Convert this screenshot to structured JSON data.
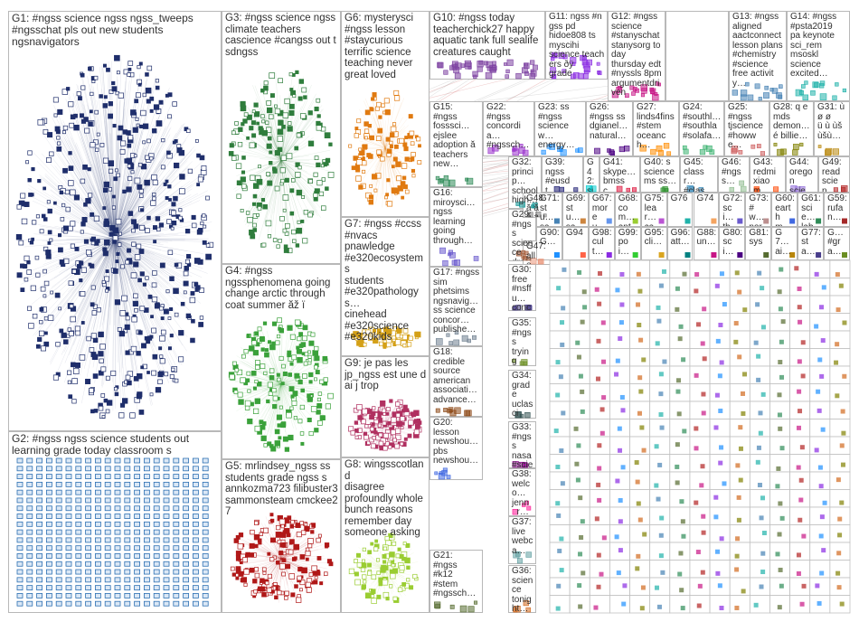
{
  "groups": [
    {
      "id": "G1",
      "label": "G1: #ngss science ngss ngss_tweeps\n#ngsschat pls out new students\nngsnavigators",
      "color": "#1f2e6b",
      "nodes": 560,
      "cluster": "ellipse"
    },
    {
      "id": "G2",
      "label": "G2: #ngss ngss science students out\nlearning grade today classroom s",
      "color": "#2c6fb2",
      "nodes": 380,
      "cluster": "grid"
    },
    {
      "id": "G3",
      "label": "G3: #ngss science ngss\nclimate teachers\ncascience #cangss out t\nsdngss",
      "color": "#2f7d3c",
      "nodes": 190,
      "cluster": "ellipse"
    },
    {
      "id": "G4",
      "label": "G4: #ngss\nngssphenomena going\nchange arctic through\ncoat summer ăž ï",
      "color": "#3aa13a",
      "nodes": 180,
      "cluster": "ellipse"
    },
    {
      "id": "G5",
      "label": "G5: mrlindsey_ngss ss\nstudents grade ngss s\nannkozma723 filibuster3\nsammonsteam cmckee27",
      "color": "#b01818",
      "nodes": 170,
      "cluster": "ellipse"
    },
    {
      "id": "G6",
      "label": "G6: mysterysci\n#ngss lesson\n#staycurious\nterrific science\nteaching never\ngreat loved",
      "color": "#e07a10",
      "nodes": 110,
      "cluster": "ellipse"
    },
    {
      "id": "G7",
      "label": "G7: #ngss #ccss\n#nvacs\npnawledge\n#e320ecosystems\nstudents\n#e320pathologys…\ncinehead\n#e320science\n#e320kids",
      "color": "#d4a017",
      "nodes": 60,
      "cluster": "ellipse"
    },
    {
      "id": "G8",
      "label": "G8: wingsscotland\ndisagree\nprofoundly whole\nbunch reasons\nremember day\nsomeone asking",
      "color": "#9acd32",
      "nodes": 90,
      "cluster": "ellipse"
    },
    {
      "id": "G9",
      "label": "G9: je pas les\njp_ngss est une d\nai j trop",
      "color": "#b03060",
      "nodes": 130,
      "cluster": "ellipse"
    },
    {
      "id": "G10",
      "label": "G10: #ngss today\nteacherchick27 happy\naquatic tank full sealife\ncreatures caught",
      "color": "#7b3fa0",
      "nodes": 40,
      "cluster": "row"
    },
    {
      "id": "G11",
      "label": "G11: ngss #ngss pd\nhidoe808 ts myscihi\nscience teachers ðÿ\ngrade",
      "color": "#8a2be2",
      "nodes": 25,
      "cluster": "row"
    },
    {
      "id": "G12",
      "label": "G12: #ngss\nscience\n#stanyschat\nstanysorg today\nthursday edt\n#nyssls 8pm\nargumentdriven",
      "color": "#c71585",
      "nodes": 18,
      "cluster": "row"
    },
    {
      "id": "G13",
      "label": "G13: #ngss\naligned\naactconnect\nlesson plans\n#chemistry\n#science\nfree activity…",
      "color": "#4682b4",
      "nodes": 14,
      "cluster": "row"
    },
    {
      "id": "G14",
      "label": "G14: #ngss\n#psta2019\npa keynote\nsci_rem\nmsoskl\nscience\nexcited…",
      "color": "#20b2aa",
      "nodes": 14,
      "cluster": "row"
    },
    {
      "id": "G15",
      "label": "G15:\n#ngss\nfosssci…\nejslee\nadoption ă\nteachers\nnew…",
      "color": "#2e8b57",
      "nodes": 8,
      "cluster": "small"
    },
    {
      "id": "G16",
      "label": "G16:\nmiroysci…\nngss\nlearning\ngoing\nthrough…",
      "color": "#6a5acd",
      "nodes": 8,
      "cluster": "small"
    },
    {
      "id": "G17",
      "label": "G17: #ngss sim\nphetsims\nngsnavig…\nss science\nconcor…\npublishe…",
      "color": "#708090",
      "nodes": 8,
      "cluster": "small"
    },
    {
      "id": "G18",
      "label": "G18:\ncredible\nsource\namerican\nassociati…\nadvance…",
      "color": "#8b4513",
      "nodes": 8,
      "cluster": "small"
    },
    {
      "id": "G19",
      "label": "",
      "color": "#ffffff",
      "nodes": 0,
      "cluster": "none"
    },
    {
      "id": "G20",
      "label": "G20:\nlesson\nnewshou…\npbs\nnewshou…",
      "color": "#4169e1",
      "nodes": 6,
      "cluster": "small"
    },
    {
      "id": "G21",
      "label": "G21:\n#ngss\n#k12\n#stem\n#ngssch…",
      "color": "#556b2f",
      "nodes": 6,
      "cluster": "small"
    },
    {
      "id": "G22",
      "label": "G22:\n#ngss\nconcordia…\n#ngssch…",
      "color": "#9932cc",
      "nodes": 8,
      "cluster": "small"
    },
    {
      "id": "G23",
      "label": "G23: ss\n#ngss\nsciencew…\nenergy…",
      "color": "#1e90ff",
      "nodes": 8,
      "cluster": "small"
    },
    {
      "id": "G24",
      "label": "G24:\n#southl…\n#southla\n#solafa…",
      "color": "#3cb371",
      "nodes": 6,
      "cluster": "small"
    },
    {
      "id": "G25",
      "label": "G25:\n#ngss\ntjscience\n#howwe…",
      "color": "#cd5c5c",
      "nodes": 6,
      "cluster": "small"
    },
    {
      "id": "G26",
      "label": "G26:\n#ngss ss\ndgianel…\nnatural…",
      "color": "#4b0082",
      "nodes": 6,
      "cluster": "small"
    },
    {
      "id": "G27",
      "label": "G27:\nlinds4fins\n#stem\noceanch…",
      "color": "#ff8c00",
      "nodes": 6,
      "cluster": "small"
    },
    {
      "id": "G28",
      "label": "G28: q e\nmds\ndemon…\né billie…",
      "color": "#808000",
      "nodes": 6,
      "cluster": "small"
    },
    {
      "id": "G29",
      "label": "G29:\n#ngss\nscience\ndrerea…",
      "color": "#a0522d",
      "nodes": 6,
      "cluster": "small"
    },
    {
      "id": "G30",
      "label": "G30:\nfree\n#nsffu…\nconcor…",
      "color": "#483d8b",
      "nodes": 6,
      "cluster": "small"
    },
    {
      "id": "G31",
      "label": "G31: ù\nø ø\nü ù ùš\nùšù…",
      "color": "#b8860b",
      "nodes": 4,
      "cluster": "small"
    },
    {
      "id": "G32",
      "label": "G32:\nprincip…\nschool\nhigh…",
      "color": "#008b8b",
      "nodes": 4,
      "cluster": "small"
    },
    {
      "id": "G33",
      "label": "G33:\n#ngss\nnasa\n#scied…",
      "color": "#8b008b",
      "nodes": 4,
      "cluster": "small"
    },
    {
      "id": "G34",
      "label": "G34:\ngrade\nuclasci\nsmmu…",
      "color": "#2f4f4f",
      "nodes": 4,
      "cluster": "small"
    },
    {
      "id": "G35",
      "label": "G35:\n#ngss\ntrying\nout…",
      "color": "#6b8e23",
      "nodes": 4,
      "cluster": "small"
    },
    {
      "id": "G36",
      "label": "G36:\nscience\ntonight…",
      "color": "#d2691e",
      "nodes": 4,
      "cluster": "small"
    },
    {
      "id": "G37",
      "label": "G37:\nlive\nwebca…",
      "color": "#5f9ea0",
      "nodes": 4,
      "cluster": "small"
    },
    {
      "id": "G38",
      "label": "G38:\nwelco…\njenn_r…",
      "color": "#ff1493",
      "nodes": 4,
      "cluster": "small"
    },
    {
      "id": "G39",
      "label": "G39:\nngss\n#eusdt…",
      "color": "#191970",
      "nodes": 3,
      "cluster": "small"
    },
    {
      "id": "G40",
      "label": "G40: s\nscience\nms ss…",
      "color": "#228b22",
      "nodes": 3,
      "cluster": "small"
    },
    {
      "id": "G41",
      "label": "G41:\nskype…\nbmssc…",
      "color": "#dc143c",
      "nodes": 3,
      "cluster": "small"
    },
    {
      "id": "G42",
      "label": "G42:\nsjofficial\ndanielle…",
      "color": "#00ced1",
      "nodes": 3,
      "cluster": "small"
    },
    {
      "id": "G43",
      "label": "G43:\nredmi\nxiaom…",
      "color": "#ff4500",
      "nodes": 3,
      "cluster": "small"
    },
    {
      "id": "G44",
      "label": "G44:\noregon\nscien…",
      "color": "#9370db",
      "nodes": 3,
      "cluster": "small"
    },
    {
      "id": "G45",
      "label": "G45:\nclassr…\n#clas…",
      "color": "#3c8dbc",
      "nodes": 3,
      "cluster": "small"
    },
    {
      "id": "G46",
      "label": "G46:\n#ngss…",
      "color": "#8fbc8f",
      "nodes": 3,
      "cluster": "small"
    },
    {
      "id": "G47",
      "label": "G47:\nalle…\nngss\nyea…",
      "color": "#e9967a",
      "nodes": 3,
      "cluster": "small"
    },
    {
      "id": "G48",
      "label": "G48:\nă ă\nă a…",
      "color": "#7f7f7f",
      "nodes": 3,
      "cluster": "small"
    },
    {
      "id": "G49",
      "label": "G49:\nread\nscien…",
      "color": "#b22222",
      "nodes": 3,
      "cluster": "small"
    }
  ],
  "mini_groups": [
    {
      "label": "G71:\nstu…\nsad…",
      "color": "#4682b4"
    },
    {
      "label": "G69:\nstu…\nsad…",
      "color": "#cd853f"
    },
    {
      "label": "G67:\nmore\nu",
      "color": "#6495ed"
    },
    {
      "label": "G68:\ncom…\nanti…",
      "color": "#9acd32"
    },
    {
      "label": "G75:\nlear…\ncar…",
      "color": "#ba55d3"
    },
    {
      "label": "G76",
      "color": "#20b2aa"
    },
    {
      "label": "G74",
      "color": "#f4a460"
    },
    {
      "label": "G72:\nsci…\ntha…",
      "color": "#6a5acd"
    },
    {
      "label": "G73:\n#w…\nnort…",
      "color": "#bc8f8f"
    },
    {
      "label": "G60:\nearth\nmo…",
      "color": "#4169e1"
    },
    {
      "label": "G61:\nscie…\nlabr…",
      "color": "#2e8b57"
    },
    {
      "label": "G59:\nrufa\nn…",
      "color": "#a52a2a"
    },
    {
      "label": "G90:\nG…",
      "color": "#1e90ff"
    },
    {
      "label": "G94",
      "color": "#ff6347"
    },
    {
      "label": "G98:\ncult…",
      "color": "#8a2be2"
    },
    {
      "label": "G99:\npoi…",
      "color": "#32cd32"
    },
    {
      "label": "G95:\ncli…",
      "color": "#daa520"
    },
    {
      "label": "G96:\natt…",
      "color": "#008080"
    },
    {
      "label": "G88:\nun…",
      "color": "#c71585"
    },
    {
      "label": "G80:\nsci…",
      "color": "#4b0082"
    },
    {
      "label": "G81:\nsys",
      "color": "#556b2f"
    },
    {
      "label": "G7…\nai…",
      "color": "#b8860b"
    },
    {
      "label": "G77:\nsta…",
      "color": "#483d8b"
    },
    {
      "label": "G…\n#gra…",
      "color": "#6b8e23"
    }
  ]
}
